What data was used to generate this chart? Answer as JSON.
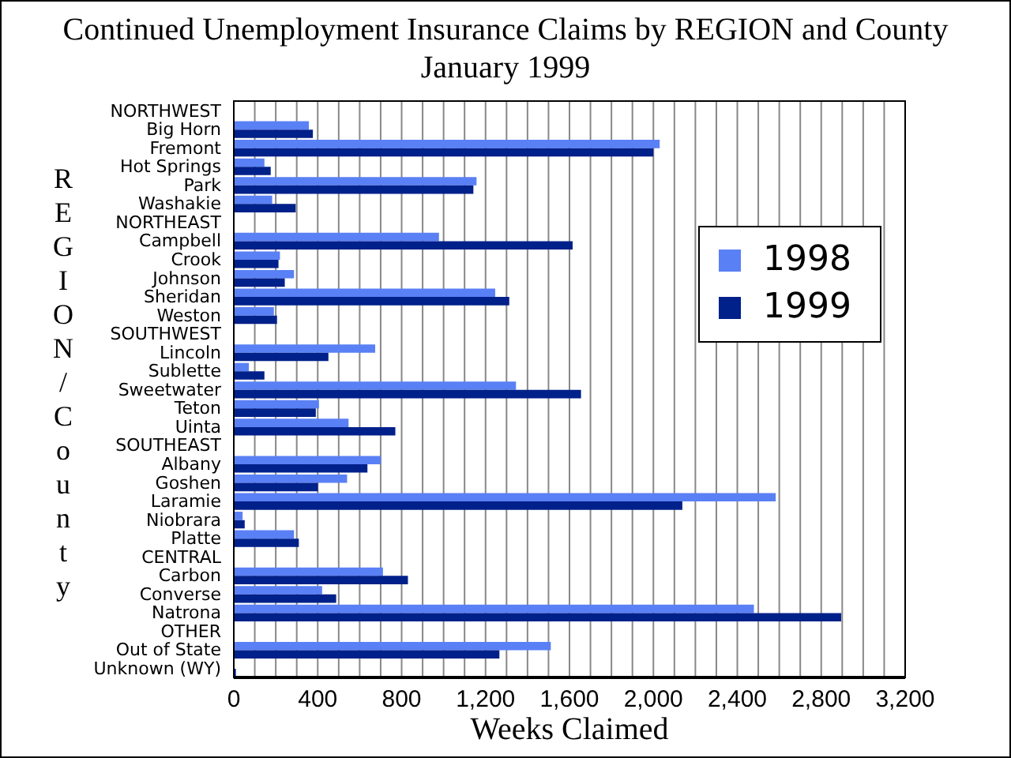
{
  "chart_data": {
    "type": "bar",
    "orientation": "horizontal",
    "title": "Continued Unemployment Insurance Claims by REGION and County",
    "subtitle": "January 1999",
    "xlabel": "Weeks Claimed",
    "ylabel": "REGION/County",
    "categories": [
      "NORTHWEST",
      "Big Horn",
      "Fremont",
      "Hot Springs",
      "Park",
      "Washakie",
      "NORTHEAST",
      "Campbell",
      "Crook",
      "Johnson",
      "Sheridan",
      "Weston",
      "SOUTHWEST",
      "Lincoln",
      "Sublette",
      "Sweetwater",
      "Teton",
      "Uinta",
      "SOUTHEAST",
      "Albany",
      "Goshen",
      "Laramie",
      "Niobrara",
      "Platte",
      "CENTRAL",
      "Carbon",
      "Converse",
      "Natrona",
      "OTHER",
      "Out of State",
      "Unknown (WY)"
    ],
    "series": [
      {
        "name": "1998",
        "color": "#5a80f5",
        "values": [
          null,
          358,
          2030,
          146,
          1157,
          183,
          null,
          978,
          220,
          287,
          1246,
          191,
          null,
          674,
          72,
          1345,
          406,
          547,
          null,
          701,
          540,
          2583,
          42,
          287,
          null,
          711,
          421,
          2479,
          null,
          1511,
          null
        ]
      },
      {
        "name": "1999",
        "color": "#00208a",
        "values": [
          null,
          377,
          2000,
          176,
          1142,
          295,
          null,
          1615,
          213,
          243,
          1313,
          206,
          null,
          451,
          146,
          1655,
          391,
          770,
          null,
          637,
          401,
          2138,
          52,
          310,
          null,
          830,
          488,
          2895,
          null,
          1266,
          10
        ]
      }
    ],
    "xlim": [
      0,
      3200
    ],
    "xticks": [
      0,
      {
        "value": 100,
        "label": null
      },
      {
        "value": 200,
        "label": null
      },
      {
        "value": 300,
        "label": null
      },
      {
        "value": 400,
        "label": "400"
      },
      {
        "value": 500,
        "label": null
      },
      {
        "value": 600,
        "label": null
      },
      {
        "value": 700,
        "label": null
      },
      {
        "value": 800,
        "label": "800"
      },
      {
        "value": 900,
        "label": null
      },
      {
        "value": 1000,
        "label": null
      },
      {
        "value": 1100,
        "label": null
      },
      {
        "value": 1200,
        "label": "1,200"
      },
      {
        "value": 1300,
        "label": null
      },
      {
        "value": 1400,
        "label": null
      },
      {
        "value": 1500,
        "label": null
      },
      {
        "value": 1600,
        "label": "1,600"
      },
      {
        "value": 1700,
        "label": null
      },
      {
        "value": 1800,
        "label": null
      },
      {
        "value": 1900,
        "label": null
      },
      {
        "value": 2000,
        "label": "2,000"
      },
      {
        "value": 2100,
        "label": null
      },
      {
        "value": 2200,
        "label": null
      },
      {
        "value": 2300,
        "label": null
      },
      {
        "value": 2400,
        "label": "2,400"
      },
      {
        "value": 2500,
        "label": null
      },
      {
        "value": 2600,
        "label": null
      },
      {
        "value": 2700,
        "label": null
      },
      {
        "value": 2800,
        "label": "2,800"
      },
      {
        "value": 2900,
        "label": null
      },
      {
        "value": 3000,
        "label": null
      },
      {
        "value": 3100,
        "label": null
      },
      {
        "value": 3200,
        "label": "3,200"
      }
    ],
    "grid": "x",
    "legend": "right"
  }
}
